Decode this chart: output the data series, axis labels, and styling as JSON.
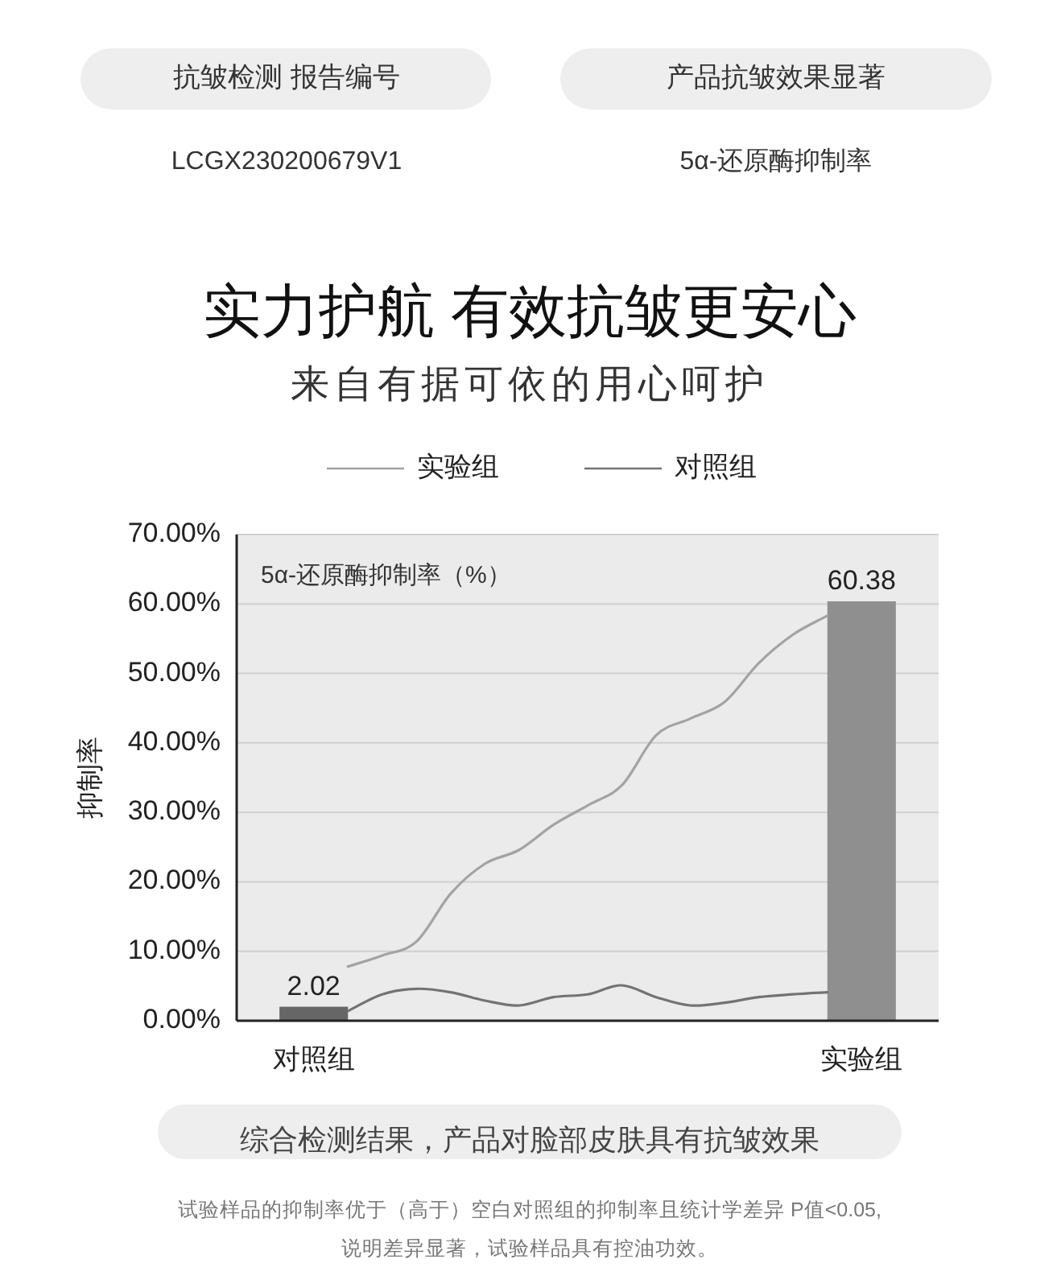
{
  "chart_data": {
    "type": "bar",
    "title": "实力护航 有效抗皱更安心",
    "subtitle": "来自有据可依的用心呵护",
    "ylabel": "抑制率",
    "categories": [
      "对照组",
      null,
      null,
      null,
      null,
      null,
      null,
      null,
      null,
      null,
      null,
      null,
      null,
      null,
      null,
      null,
      "实验组"
    ],
    "series": [
      {
        "colors": [
          "#666666",
          null,
          null,
          null,
          null,
          null,
          null,
          null,
          null,
          null,
          null,
          null,
          null,
          null,
          null,
          null,
          "#8f8f8f"
        ],
        "values": [
          2.02,
          null,
          null,
          null,
          null,
          null,
          null,
          null,
          null,
          null,
          null,
          null,
          null,
          null,
          null,
          null,
          60.38
        ],
        "value_labels": [
          "2.02",
          null,
          null,
          null,
          null,
          null,
          null,
          null,
          null,
          null,
          null,
          null,
          null,
          null,
          null,
          null,
          "60.38"
        ]
      },
      {
        "type": "line",
        "name": "实验组",
        "color": "#a3a3a3",
        "values": [
          null,
          7.8,
          9.4,
          11.4,
          18.3,
          22.6,
          24.6,
          28.2,
          31,
          33.9,
          41.1,
          43.5,
          45.9,
          51.5,
          55.6,
          58.3,
          null
        ]
      },
      {
        "type": "line",
        "name": "对照组",
        "color": "#737373",
        "values": [
          null,
          1.4,
          3.8,
          4.6,
          4.1,
          2.9,
          2.2,
          3.4,
          3.8,
          5.1,
          3.4,
          2.2,
          2.6,
          3.4,
          3.8,
          4.1,
          null
        ]
      }
    ],
    "ylim": [
      0,
      70
    ],
    "yticks": [
      {
        "value": 0,
        "label": "0.00%"
      },
      {
        "value": 10,
        "label": "10.00%"
      },
      {
        "value": 20,
        "label": "20.00%"
      },
      {
        "value": 30,
        "label": "30.00%"
      },
      {
        "value": 40,
        "label": "40.00%"
      },
      {
        "value": 50,
        "label": "50.00%"
      },
      {
        "value": 60,
        "label": "60.00%"
      },
      {
        "value": 70,
        "label": "70.00%"
      }
    ],
    "grid": true,
    "legend": "top",
    "line_style": "solid",
    "annotations": [
      "抗皱检测 报告编号",
      "LCGX230200679V1",
      "产品抗皱效果显著",
      "5α-还原酶抑制率",
      "5α-还原酶抑制率（%）",
      "综合检测结果，产品对脸部皮肤具有抗皱效果",
      "试验样品的抑制率优于（高于）空白对照组的抑制率且统计学差异 P值<0.05,",
      "说明差异显著，试验样品具有控油功效。"
    ]
  }
}
